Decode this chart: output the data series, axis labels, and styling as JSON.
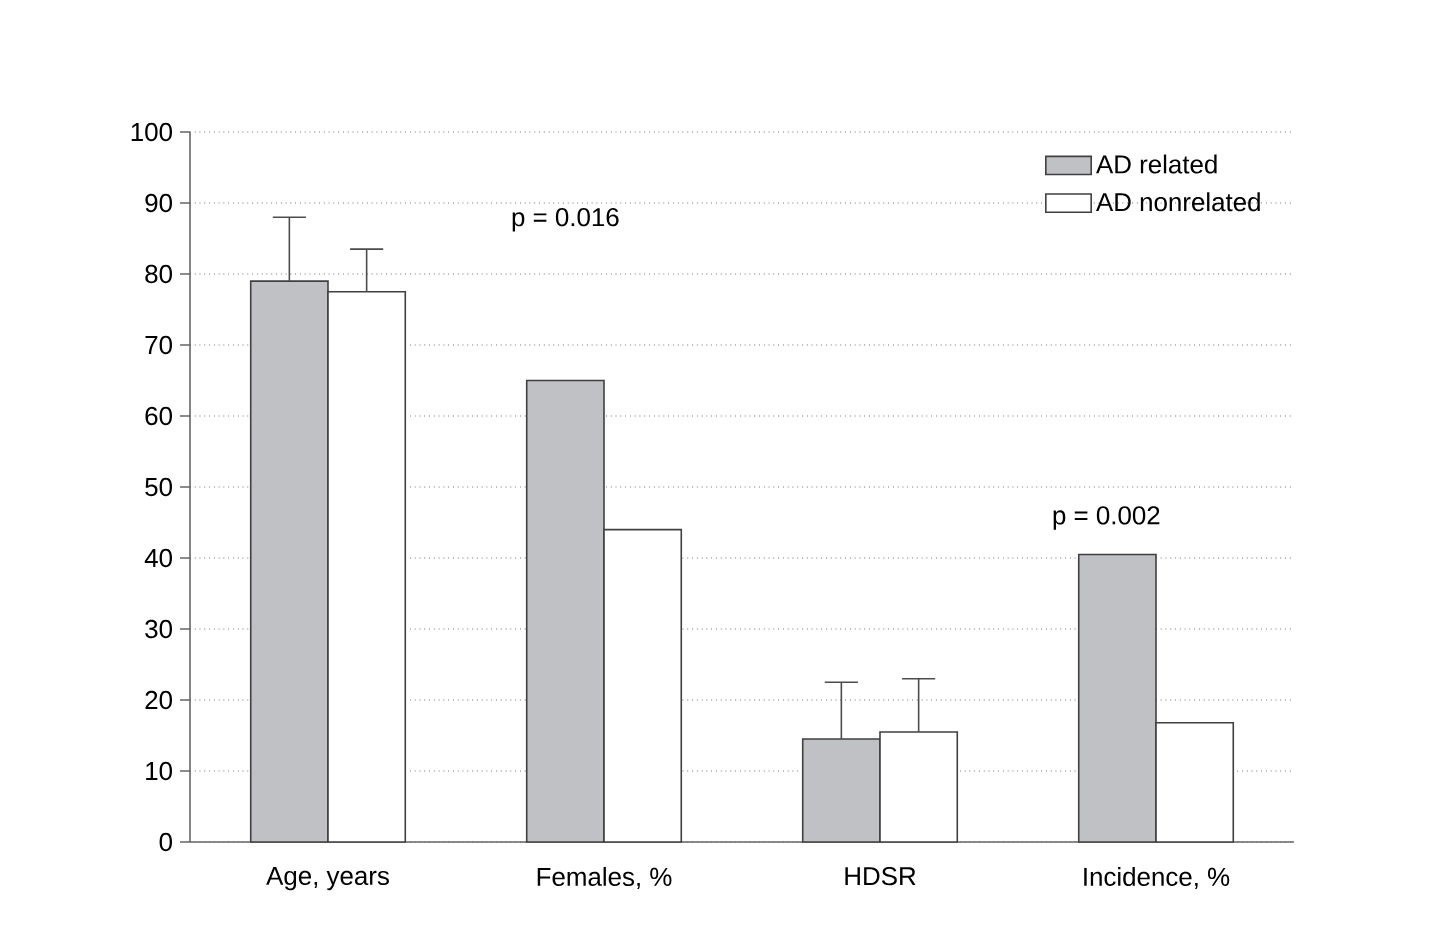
{
  "chart_data": {
    "type": "bar",
    "categories": [
      "Age, years",
      "Females, %",
      "HDSR",
      "Incidence, %"
    ],
    "series": [
      {
        "name": "AD related",
        "color": "#c0c1c4",
        "values": [
          79,
          65,
          14.5,
          40.5
        ],
        "errors": [
          [
            79,
            88
          ],
          null,
          [
            14.5,
            22.5
          ],
          null
        ]
      },
      {
        "name": "AD  nonrelated",
        "color": "#ffffff",
        "values": [
          77.5,
          44,
          15.5,
          16.8
        ],
        "errors": [
          [
            77.5,
            83.5
          ],
          null,
          [
            15.5,
            23
          ],
          null
        ]
      }
    ],
    "ylim": [
      0,
      100
    ],
    "yticks": [
      0,
      10,
      20,
      30,
      40,
      50,
      60,
      70,
      80,
      90,
      100
    ],
    "grid": "y",
    "legend": "top right",
    "annotations": [
      "p = 0.016",
      "p = 0.002"
    ]
  }
}
